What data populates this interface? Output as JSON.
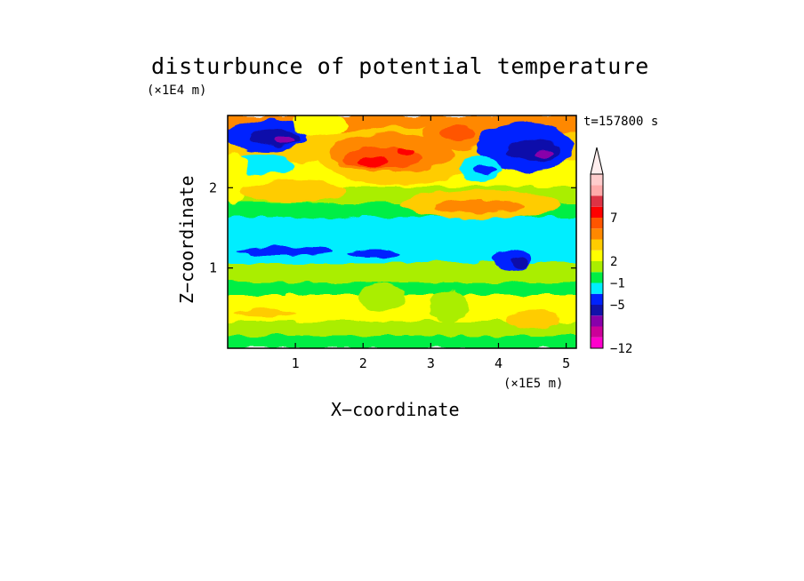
{
  "chart_data": {
    "type": "heatmap",
    "title": "disturbunce of potential temperature",
    "time_label": "t=157800 s",
    "xlabel": "X−coordinate",
    "ylabel": "Z−coordinate",
    "x_unit": "(×1E5 m)",
    "y_unit": "(×1E4 m)",
    "xlim": [
      0,
      5.15
    ],
    "ylim": [
      0,
      2.9
    ],
    "x_ticks": [
      {
        "value": 1,
        "label": "1"
      },
      {
        "value": 2,
        "label": "2"
      },
      {
        "value": 3,
        "label": "3"
      },
      {
        "value": 4,
        "label": "4"
      },
      {
        "value": 5,
        "label": "5"
      }
    ],
    "y_ticks": [
      {
        "value": 1,
        "label": "1"
      },
      {
        "value": 2,
        "label": "2"
      }
    ],
    "colorbar": {
      "levels": [
        {
          "color": "#ff00cc"
        },
        {
          "color": "#cc0099"
        },
        {
          "color": "#8800aa"
        },
        {
          "color": "#1111aa"
        },
        {
          "color": "#0022ff"
        },
        {
          "color": "#00eeff"
        },
        {
          "color": "#00ee44"
        },
        {
          "color": "#aaee00"
        },
        {
          "color": "#ffff00"
        },
        {
          "color": "#ffcc00"
        },
        {
          "color": "#ff8800"
        },
        {
          "color": "#ff5500"
        },
        {
          "color": "#ff0000"
        },
        {
          "color": "#dd3344"
        },
        {
          "color": "#ffaaaa"
        },
        {
          "color": "#ffcccc"
        }
      ],
      "extend_top_color": "#ffeeee",
      "tick_labels": [
        {
          "label": "−12",
          "level_boundary": 0
        },
        {
          "label": "−5",
          "level_boundary": 4
        },
        {
          "label": "−1",
          "level_boundary": 6
        },
        {
          "label": "2",
          "level_boundary": 8
        },
        {
          "label": "7",
          "level_boundary": 12
        }
      ]
    }
  }
}
